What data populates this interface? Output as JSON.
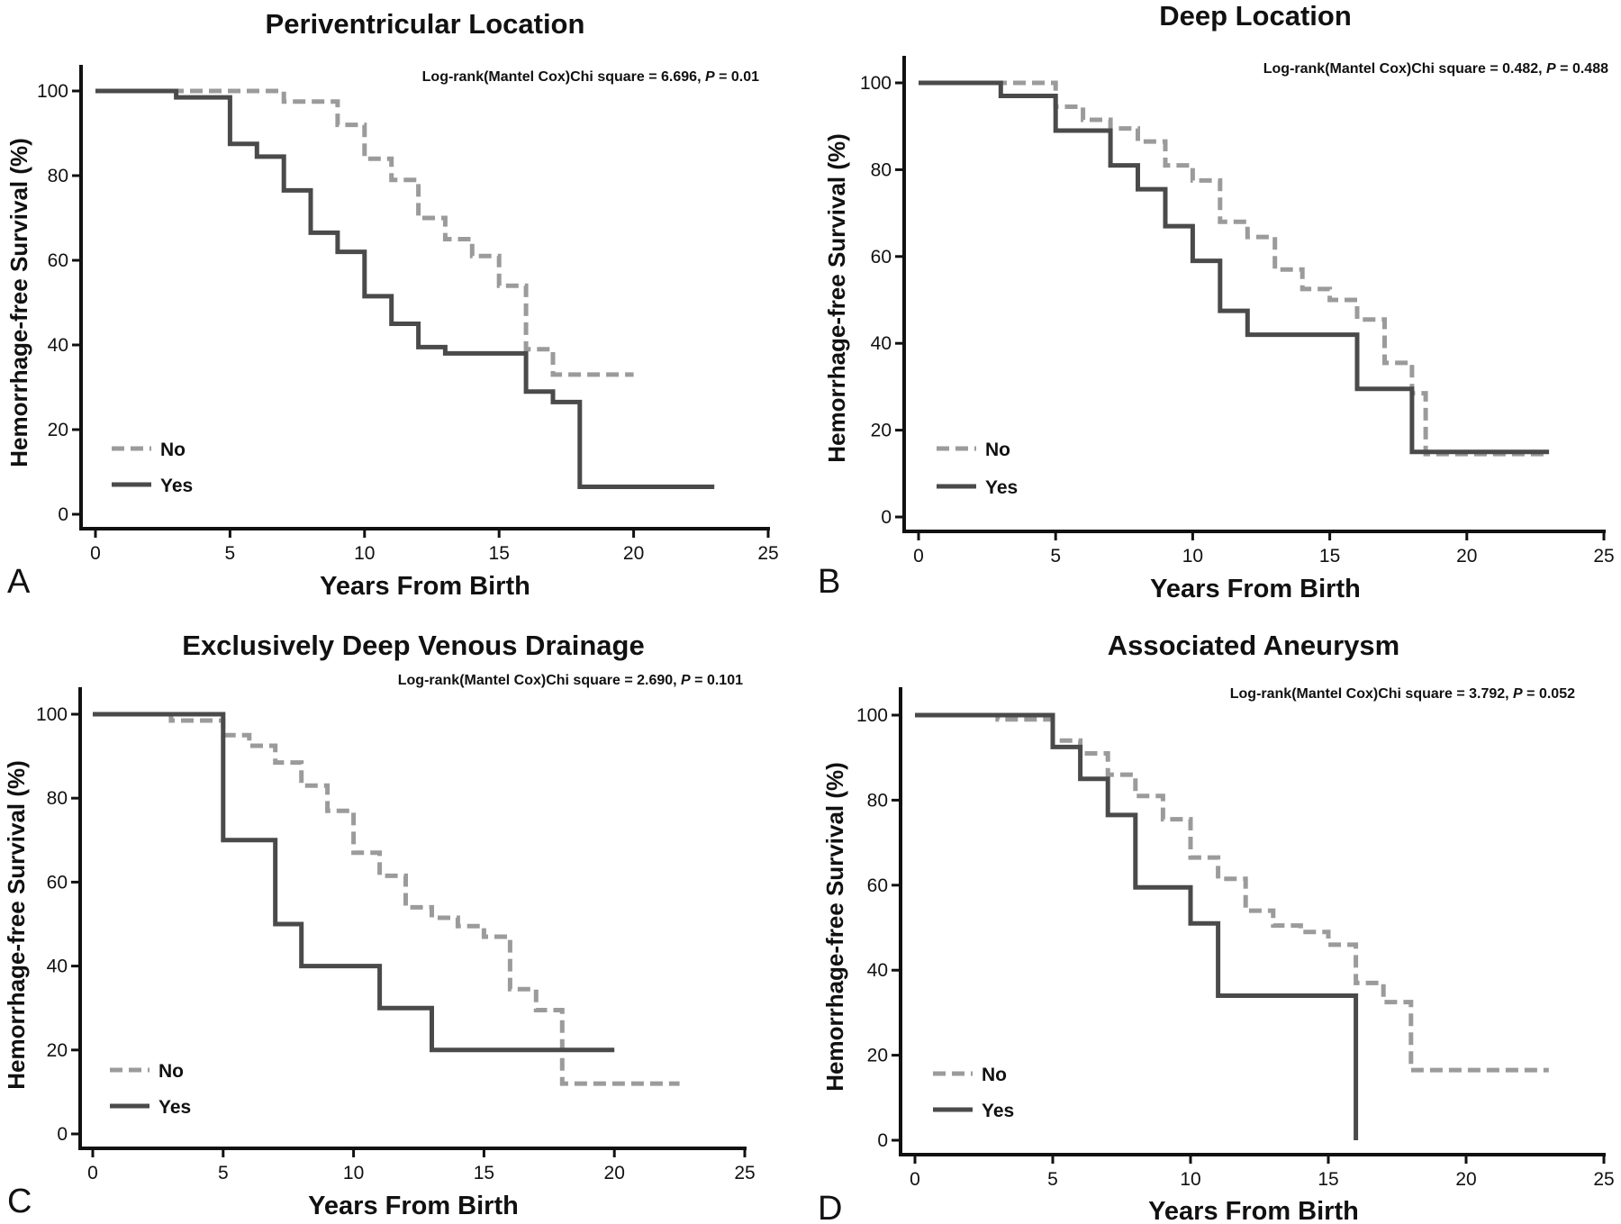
{
  "chart_data": [
    {
      "panel": "A",
      "type": "line",
      "step": true,
      "title": "Periventricular Location",
      "stat_text": "Log-rank(Mantel Cox)Chi square = 6.696, ",
      "p_label": "P",
      "p_text": " = 0.01",
      "xlabel": "Years From Birth",
      "ylabel": "Hemorrhage-free Survival (%)",
      "xlim": [
        0,
        25
      ],
      "ylim": [
        0,
        100
      ],
      "xticks": [
        0,
        5,
        10,
        15,
        20,
        25
      ],
      "yticks": [
        0,
        20,
        40,
        60,
        80,
        100
      ],
      "legend_position": "bottom-left",
      "series": [
        {
          "name": "No",
          "style": "dashed",
          "color": "#9b9b9b",
          "points": [
            [
              0,
              100
            ],
            [
              3,
              100
            ],
            [
              7,
              100
            ],
            [
              7,
              97.5
            ],
            [
              9,
              97.5
            ],
            [
              9,
              92
            ],
            [
              10,
              92
            ],
            [
              10,
              84
            ],
            [
              11,
              84
            ],
            [
              11,
              79
            ],
            [
              12,
              79
            ],
            [
              12,
              70
            ],
            [
              13,
              70
            ],
            [
              13,
              65
            ],
            [
              14,
              65
            ],
            [
              14,
              61
            ],
            [
              15,
              61
            ],
            [
              15,
              54
            ],
            [
              16,
              54
            ],
            [
              16,
              39
            ],
            [
              17,
              39
            ],
            [
              17,
              33
            ],
            [
              20,
              33
            ]
          ]
        },
        {
          "name": "Yes",
          "style": "solid",
          "color": "#4a4a4a",
          "points": [
            [
              0,
              100
            ],
            [
              3,
              100
            ],
            [
              3,
              98.5
            ],
            [
              5,
              98.5
            ],
            [
              5,
              87.5
            ],
            [
              6,
              87.5
            ],
            [
              6,
              84.5
            ],
            [
              7,
              84.5
            ],
            [
              7,
              76.5
            ],
            [
              8,
              76.5
            ],
            [
              8,
              66.5
            ],
            [
              9,
              66.5
            ],
            [
              9,
              62
            ],
            [
              10,
              62
            ],
            [
              10,
              51.5
            ],
            [
              11,
              51.5
            ],
            [
              11,
              45
            ],
            [
              12,
              45
            ],
            [
              12,
              39.5
            ],
            [
              13,
              39.5
            ],
            [
              13,
              38
            ],
            [
              16,
              38
            ],
            [
              16,
              29
            ],
            [
              17,
              29
            ],
            [
              17,
              26.5
            ],
            [
              18,
              26.5
            ],
            [
              18,
              6.5
            ],
            [
              23,
              6.5
            ]
          ]
        }
      ]
    },
    {
      "panel": "B",
      "type": "line",
      "step": true,
      "title": "Deep Location",
      "stat_text": "Log-rank(Mantel Cox)Chi square = 0.482, ",
      "p_label": "P",
      "p_text": " = 0.488",
      "xlabel": "Years From Birth",
      "ylabel": "Hemorrhage-free Survival (%)",
      "xlim": [
        0,
        25
      ],
      "ylim": [
        0,
        100
      ],
      "xticks": [
        0,
        5,
        10,
        15,
        20,
        25
      ],
      "yticks": [
        0,
        20,
        40,
        60,
        80,
        100
      ],
      "legend_position": "bottom-left",
      "series": [
        {
          "name": "No",
          "style": "dashed",
          "color": "#9b9b9b",
          "points": [
            [
              0,
              100
            ],
            [
              5,
              100
            ],
            [
              5,
              94.5
            ],
            [
              6,
              94.5
            ],
            [
              6,
              91.5
            ],
            [
              7,
              91.5
            ],
            [
              7,
              89.5
            ],
            [
              8,
              89.5
            ],
            [
              8,
              86.5
            ],
            [
              9,
              86.5
            ],
            [
              9,
              81
            ],
            [
              10,
              81
            ],
            [
              10,
              77.5
            ],
            [
              11,
              77.5
            ],
            [
              11,
              68
            ],
            [
              12,
              68
            ],
            [
              12,
              64.5
            ],
            [
              13,
              64.5
            ],
            [
              13,
              57
            ],
            [
              14,
              57
            ],
            [
              14,
              52.5
            ],
            [
              15,
              52.5
            ],
            [
              15,
              50
            ],
            [
              16,
              50
            ],
            [
              16,
              45.5
            ],
            [
              17,
              45.5
            ],
            [
              17,
              35.5
            ],
            [
              18,
              35.5
            ],
            [
              18,
              28.5
            ],
            [
              18.5,
              28.5
            ],
            [
              18.5,
              14.5
            ],
            [
              23,
              14.5
            ]
          ]
        },
        {
          "name": "Yes",
          "style": "solid",
          "color": "#4a4a4a",
          "points": [
            [
              0,
              100
            ],
            [
              3,
              100
            ],
            [
              3,
              97
            ],
            [
              5,
              97
            ],
            [
              5,
              89
            ],
            [
              7,
              89
            ],
            [
              7,
              81
            ],
            [
              8,
              81
            ],
            [
              8,
              75.5
            ],
            [
              9,
              75.5
            ],
            [
              9,
              67
            ],
            [
              10,
              67
            ],
            [
              10,
              59
            ],
            [
              11,
              59
            ],
            [
              11,
              47.5
            ],
            [
              12,
              47.5
            ],
            [
              12,
              42
            ],
            [
              16,
              42
            ],
            [
              16,
              29.5
            ],
            [
              18,
              29.5
            ],
            [
              18,
              15
            ],
            [
              23,
              15
            ]
          ]
        }
      ]
    },
    {
      "panel": "C",
      "type": "line",
      "step": true,
      "title": "Exclusively Deep Venous Drainage",
      "stat_text": "Log-rank(Mantel Cox)Chi square = 2.690, ",
      "p_label": "P",
      "p_text": " = 0.101",
      "xlabel": "Years From Birth",
      "ylabel": "Hemorrhage-free Survival (%)",
      "xlim": [
        0,
        25
      ],
      "ylim": [
        0,
        100
      ],
      "xticks": [
        0,
        5,
        10,
        15,
        20,
        25
      ],
      "yticks": [
        0,
        20,
        40,
        60,
        80,
        100
      ],
      "legend_position": "bottom-left",
      "series": [
        {
          "name": "No",
          "style": "dashed",
          "color": "#9b9b9b",
          "points": [
            [
              0,
              100
            ],
            [
              3,
              100
            ],
            [
              3,
              98.5
            ],
            [
              5,
              98.5
            ],
            [
              5,
              95
            ],
            [
              6,
              95
            ],
            [
              6,
              92.5
            ],
            [
              7,
              92.5
            ],
            [
              7,
              88.5
            ],
            [
              8,
              88.5
            ],
            [
              8,
              83
            ],
            [
              9,
              83
            ],
            [
              9,
              77
            ],
            [
              10,
              77
            ],
            [
              10,
              67
            ],
            [
              11,
              67
            ],
            [
              11,
              61.5
            ],
            [
              12,
              61.5
            ],
            [
              12,
              54
            ],
            [
              13,
              54
            ],
            [
              13,
              51.5
            ],
            [
              14,
              51.5
            ],
            [
              14,
              49.5
            ],
            [
              15,
              49.5
            ],
            [
              15,
              47
            ],
            [
              16,
              47
            ],
            [
              16,
              34.5
            ],
            [
              17,
              34.5
            ],
            [
              17,
              29.5
            ],
            [
              18,
              29.5
            ],
            [
              18,
              12
            ],
            [
              22.5,
              12
            ]
          ]
        },
        {
          "name": "Yes",
          "style": "solid",
          "color": "#4a4a4a",
          "points": [
            [
              0,
              100
            ],
            [
              5,
              100
            ],
            [
              5,
              70
            ],
            [
              7,
              70
            ],
            [
              7,
              50
            ],
            [
              8,
              50
            ],
            [
              8,
              40
            ],
            [
              11,
              40
            ],
            [
              11,
              30
            ],
            [
              13,
              30
            ],
            [
              13,
              20
            ],
            [
              20,
              20
            ]
          ]
        }
      ]
    },
    {
      "panel": "D",
      "type": "line",
      "step": true,
      "title": "Associated Aneurysm",
      "stat_text": "Log-rank(Mantel Cox)Chi square = 3.792, ",
      "p_label": "P",
      "p_text": " = 0.052",
      "xlabel": "Years From Birth",
      "ylabel": "Hemorrhage-free Survival (%)",
      "xlim": [
        0,
        25
      ],
      "ylim": [
        0,
        100
      ],
      "xticks": [
        0,
        5,
        10,
        15,
        20,
        25
      ],
      "yticks": [
        0,
        20,
        40,
        60,
        80,
        100
      ],
      "legend_position": "bottom-left",
      "series": [
        {
          "name": "No",
          "style": "dashed",
          "color": "#9b9b9b",
          "points": [
            [
              0,
              100
            ],
            [
              3,
              100
            ],
            [
              3,
              99
            ],
            [
              5,
              99
            ],
            [
              5,
              94
            ],
            [
              6,
              94
            ],
            [
              6,
              91
            ],
            [
              7,
              91
            ],
            [
              7,
              86
            ],
            [
              8,
              86
            ],
            [
              8,
              81
            ],
            [
              9,
              81
            ],
            [
              9,
              75.5
            ],
            [
              10,
              75.5
            ],
            [
              10,
              66.5
            ],
            [
              11,
              66.5
            ],
            [
              11,
              61.5
            ],
            [
              12,
              61.5
            ],
            [
              12,
              54
            ],
            [
              13,
              54
            ],
            [
              13,
              50.5
            ],
            [
              14,
              50.5
            ],
            [
              14,
              49
            ],
            [
              15,
              49
            ],
            [
              15,
              46
            ],
            [
              16,
              46
            ],
            [
              16,
              37
            ],
            [
              17,
              37
            ],
            [
              17,
              32.5
            ],
            [
              18,
              32.5
            ],
            [
              18,
              16.5
            ],
            [
              23,
              16.5
            ]
          ]
        },
        {
          "name": "Yes",
          "style": "solid",
          "color": "#4a4a4a",
          "points": [
            [
              0,
              100
            ],
            [
              5,
              100
            ],
            [
              5,
              92.5
            ],
            [
              6,
              92.5
            ],
            [
              6,
              85
            ],
            [
              7,
              85
            ],
            [
              7,
              76.5
            ],
            [
              8,
              76.5
            ],
            [
              8,
              59.5
            ],
            [
              10,
              59.5
            ],
            [
              10,
              51
            ],
            [
              11,
              51
            ],
            [
              11,
              34
            ],
            [
              16,
              34
            ],
            [
              16,
              0
            ]
          ]
        }
      ]
    }
  ]
}
